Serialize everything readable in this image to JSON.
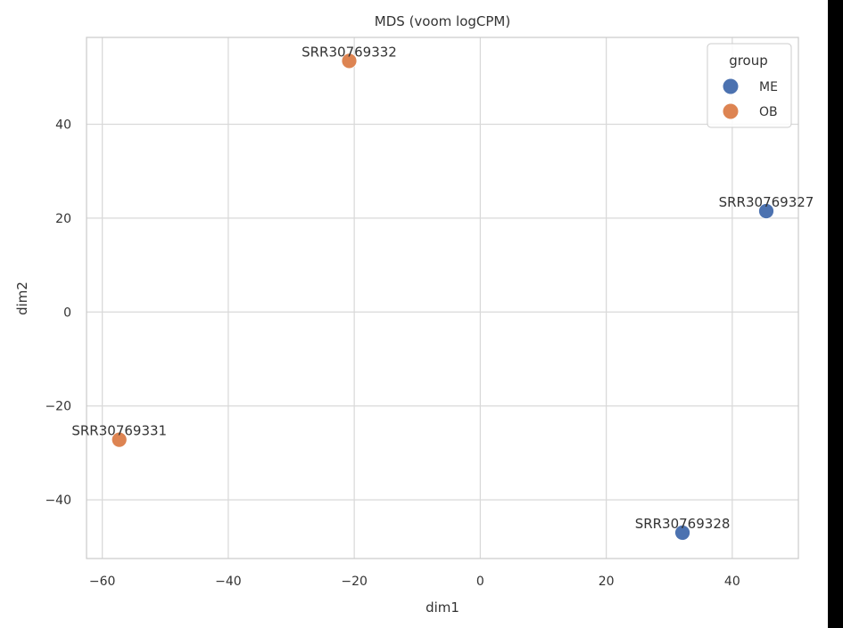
{
  "chart_data": {
    "type": "scatter",
    "title": "MDS (voom logCPM)",
    "xlabel": "dim1",
    "ylabel": "dim2",
    "xlim": [
      -62.5,
      50.5
    ],
    "ylim": [
      -52.5,
      58.5
    ],
    "xticks": [
      -60,
      -40,
      -20,
      0,
      20,
      40
    ],
    "yticks": [
      -40,
      -20,
      0,
      20,
      40
    ],
    "xtick_labels": [
      "−60",
      "−40",
      "−20",
      "0",
      "20",
      "40"
    ],
    "ytick_labels": [
      "−40",
      "−20",
      "0",
      "20",
      "40"
    ],
    "grid": true,
    "legend": {
      "title": "group",
      "placement": "top-right",
      "entries": [
        {
          "name": "ME",
          "color": "#4c72b0"
        },
        {
          "name": "OB",
          "color": "#dd8452"
        }
      ]
    },
    "points": [
      {
        "label": "SRR30769332",
        "group": "OB",
        "x": -20.8,
        "y": 53.5
      },
      {
        "label": "SRR30769327",
        "group": "ME",
        "x": 45.4,
        "y": 21.5
      },
      {
        "label": "SRR30769331",
        "group": "OB",
        "x": -57.3,
        "y": -27.2
      },
      {
        "label": "SRR30769328",
        "group": "ME",
        "x": 32.1,
        "y": -47.0
      }
    ]
  },
  "colors": {
    "grid": "#d9d9d9",
    "axes_border": "#cccccc",
    "text": "#333333",
    "ME": "#4c72b0",
    "OB": "#dd8452"
  }
}
